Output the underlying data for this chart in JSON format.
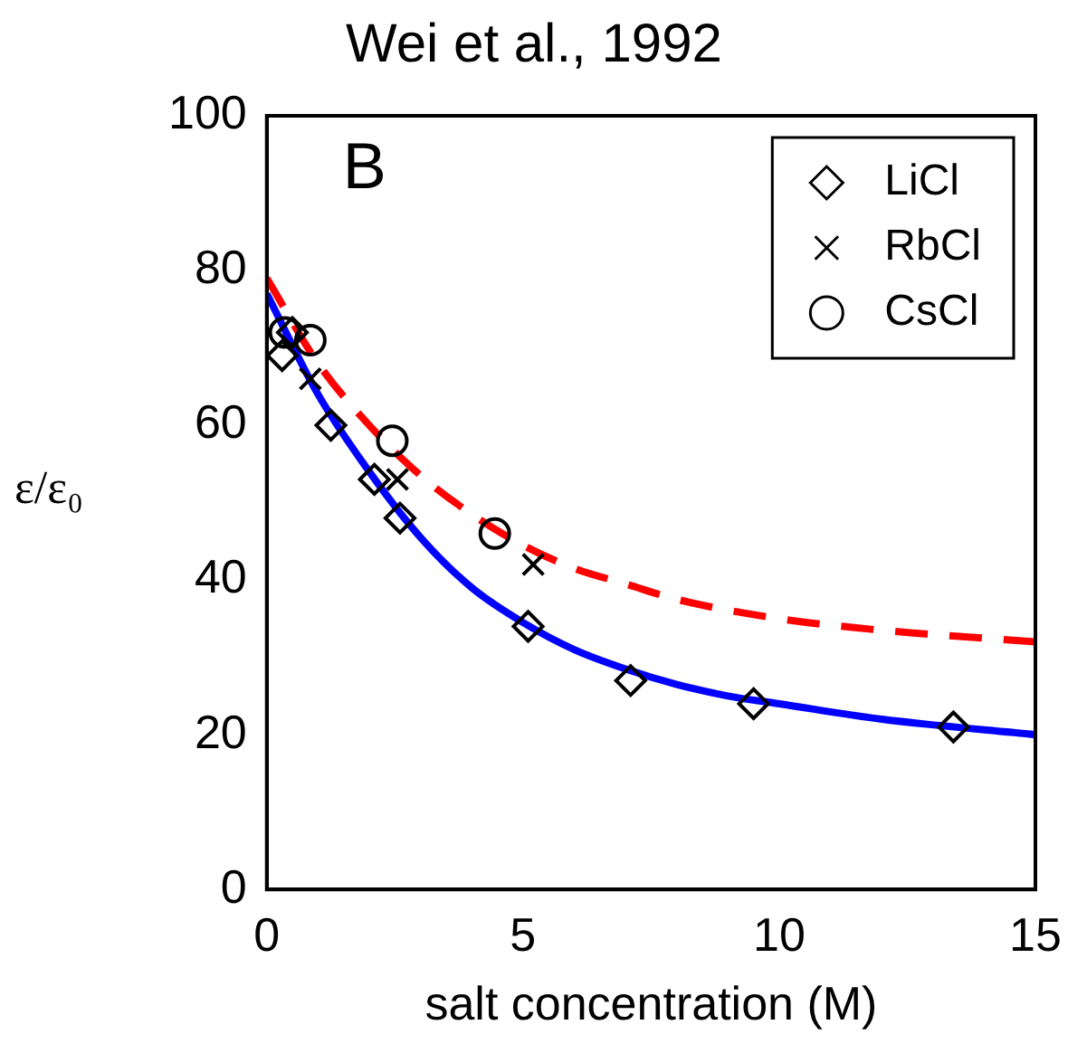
{
  "chart_data": {
    "type": "scatter",
    "title": "Wei et al., 1992",
    "xlabel": "salt concentration (M)",
    "ylabel": "ε/ε₀",
    "annotations": [
      "B"
    ],
    "xlim": [
      0,
      15
    ],
    "xticks": [
      0,
      5,
      10,
      15
    ],
    "ylim": [
      0,
      100
    ],
    "yticks": [
      0,
      20,
      40,
      60,
      80,
      100
    ],
    "grid": false,
    "legend": "top right",
    "series": [
      {
        "name": "LiCl",
        "color": "#000000",
        "marker": "diamond",
        "x": [
          0.3,
          0.5,
          1.25,
          2.1,
          2.6,
          5.1,
          7.1,
          9.5,
          13.4
        ],
        "values": [
          69,
          72,
          60,
          53,
          48,
          34,
          27,
          24,
          21
        ]
      },
      {
        "name": "RbCl",
        "color": "#000000",
        "marker": "cross",
        "x": [
          0.85,
          2.55,
          5.2
        ],
        "values": [
          66,
          53,
          42
        ]
      },
      {
        "name": "CsCl",
        "color": "#000000",
        "marker": "circle",
        "x": [
          0.35,
          0.85,
          2.45,
          4.45
        ],
        "values": [
          72,
          71,
          58,
          46
        ]
      },
      {
        "type": "line",
        "color": "#0000ff",
        "marker": "none",
        "line_style": "solid",
        "x": [
          0,
          1,
          2,
          3,
          4,
          5,
          6,
          7,
          8,
          9,
          10,
          12,
          15
        ],
        "values": [
          77,
          64,
          54,
          45.5,
          39,
          34.5,
          31,
          28.5,
          26.5,
          25,
          24,
          22,
          20
        ]
      },
      {
        "type": "line",
        "color": "#ff0000",
        "marker": "none",
        "line_style": "dashed",
        "x": [
          0,
          1,
          2,
          3,
          4,
          5,
          6,
          7,
          8,
          10,
          12,
          15
        ],
        "values": [
          79,
          68,
          60,
          53.5,
          48.5,
          44.5,
          41.5,
          39.5,
          37.5,
          35,
          33.5,
          32
        ]
      }
    ]
  }
}
